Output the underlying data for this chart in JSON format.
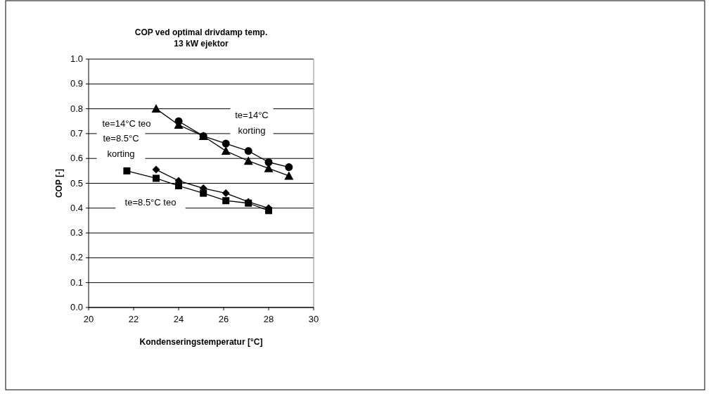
{
  "chart_data": {
    "type": "line",
    "title": "COP ved optimal drivdamp temp.\n13 kW ejektor",
    "xlabel": "Kondenseringstemperatur [°C]",
    "ylabel": "COP [-]",
    "xlim": [
      20,
      30
    ],
    "xticks": [
      20,
      22,
      24,
      26,
      28,
      30
    ],
    "ylim": [
      0,
      1
    ],
    "yticks": [
      {
        "value": 0,
        "label": "0.0"
      },
      {
        "value": 0.1,
        "label": "0.1"
      },
      {
        "value": 0.2,
        "label": "0.2"
      },
      {
        "value": 0.3,
        "label": "0.3"
      },
      {
        "value": 0.4,
        "label": "0.4"
      },
      {
        "value": 0.5,
        "label": "0.5"
      },
      {
        "value": 0.6,
        "label": "0.6"
      },
      {
        "value": 0.7,
        "label": "0.7"
      },
      {
        "value": 0.8,
        "label": "0.8"
      },
      {
        "value": 0.9,
        "label": "0.9"
      },
      {
        "value": 1,
        "label": "1.0"
      }
    ],
    "grid": "y",
    "series": [
      {
        "color": "#000000",
        "marker": "triangle",
        "x": [
          23,
          24,
          25.1,
          26.1,
          27.1,
          28,
          28.9
        ],
        "values": [
          0.8,
          0.735,
          0.69,
          0.63,
          0.59,
          0.56,
          0.53
        ]
      },
      {
        "color": "#000000",
        "marker": "circle",
        "x": [
          24,
          25.1,
          26.1,
          27.1,
          28,
          28.9
        ],
        "values": [
          0.75,
          0.69,
          0.66,
          0.63,
          0.585,
          0.565
        ]
      },
      {
        "color": "#000000",
        "marker": "diamond",
        "x": [
          23,
          24,
          25.1,
          26.1,
          27.1,
          28
        ],
        "values": [
          0.555,
          0.51,
          0.48,
          0.46,
          0.425,
          0.4
        ]
      },
      {
        "color": "#000000",
        "marker": "square",
        "x": [
          21.7,
          23,
          24,
          25.1,
          26.1,
          27.1,
          28
        ],
        "values": [
          0.55,
          0.52,
          0.49,
          0.46,
          0.43,
          0.42,
          0.39
        ]
      }
    ],
    "annotations": [
      "te=14°C teo",
      "te=8.5°C\nkorting",
      "te=14°C\nkorting",
      "te=8.5°C teo"
    ]
  }
}
